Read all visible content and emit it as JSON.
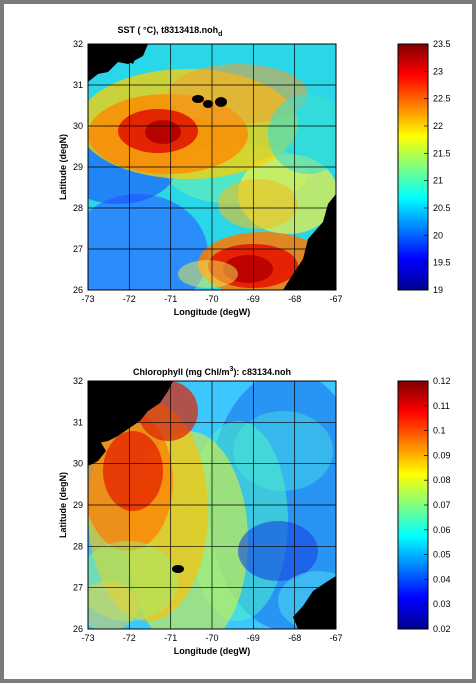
{
  "chart_data": [
    {
      "type": "heatmap",
      "title": "SST ( °C), t8313418.noh",
      "title_subscript": "d",
      "xlabel": "Longitude (degW)",
      "ylabel": "Latitude (degN)",
      "xlim": [
        -73,
        -67
      ],
      "ylim": [
        26,
        32
      ],
      "xticks": [
        "-73",
        "-72",
        "-71",
        "-70",
        "-69",
        "-68",
        "-67"
      ],
      "yticks": [
        "26",
        "27",
        "28",
        "29",
        "30",
        "31",
        "32"
      ],
      "grid": true,
      "colorbar": {
        "range": [
          19,
          23.5
        ],
        "ticks": [
          "19",
          "19.5",
          "20",
          "20.5",
          "21",
          "21.5",
          "22",
          "22.5",
          "23",
          "23.5"
        ],
        "colormap": "jet"
      },
      "field_description": "Warm core (~23.3) near 71.4W 29.9N; warm eddy (~23.2) near 68.9W 26.8N; cool band (~20.2) near 72.5W 27.8N; land masked black in NW corner and SE corner"
    },
    {
      "type": "heatmap",
      "title": "Chlorophyll (mg Chl/m",
      "title_superscript": "3",
      "title_suffix": "): c83134.noh",
      "xlabel": "Longitude (degW)",
      "ylabel": "Latitude (degN)",
      "xlim": [
        -73,
        -67
      ],
      "ylim": [
        26,
        32
      ],
      "xticks": [
        "-73",
        "-72",
        "-71",
        "-70",
        "-69",
        "-68",
        "-67"
      ],
      "yticks": [
        "26",
        "27",
        "28",
        "29",
        "30",
        "31",
        "32"
      ],
      "grid": true,
      "colorbar": {
        "range": [
          0.02,
          0.12
        ],
        "ticks": [
          "0.02",
          "0.03",
          "0.04",
          "0.05",
          "0.06",
          "0.07",
          "0.08",
          "0.09",
          "0.1",
          "0.11",
          "0.12"
        ],
        "colormap": "jet"
      },
      "field_description": "High chlorophyll (~0.1) in western third, decreasing eastward to ~0.04 near 68W; land masked black in NW and SE corners"
    }
  ]
}
